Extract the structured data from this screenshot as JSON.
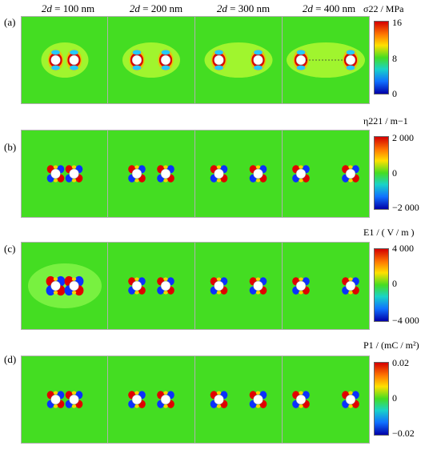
{
  "columns": [
    {
      "var": "2d",
      "value": " = 100 nm"
    },
    {
      "var": "2d",
      "value": " = 200 nm"
    },
    {
      "var": "2d",
      "value": " = 300 nm"
    },
    {
      "var": "2d",
      "value": " = 400 nm"
    }
  ],
  "rows": [
    {
      "label": "(a)",
      "colorbar": {
        "title": "σ22 / MPa",
        "ticks": [
          "16",
          "8",
          "0"
        ],
        "max": 16,
        "mid": 8,
        "min": 0
      }
    },
    {
      "label": "(b)",
      "colorbar": {
        "title": "η221 / m−1",
        "ticks": [
          "2 000",
          "0",
          "−2 000"
        ],
        "max": 2000,
        "mid": 0,
        "min": -2000
      }
    },
    {
      "label": "(c)",
      "colorbar": {
        "title": "E1 / ( V / m )",
        "ticks": [
          "4 000",
          "0",
          "−4 000"
        ],
        "max": 4000,
        "mid": 0,
        "min": -4000
      }
    },
    {
      "label": "(d)",
      "colorbar": {
        "title": "P1 / (mC / m²)",
        "ticks": [
          "0.02",
          "0",
          "−0.02"
        ],
        "max": 0.02,
        "mid": 0,
        "min": -0.02
      }
    }
  ],
  "hole_spacing_nm": [
    100,
    200,
    300,
    400
  ],
  "colors": {
    "background_field": "#44dd22",
    "hole": "#ffffff",
    "high": "#d40000",
    "low": "#0000a8"
  }
}
